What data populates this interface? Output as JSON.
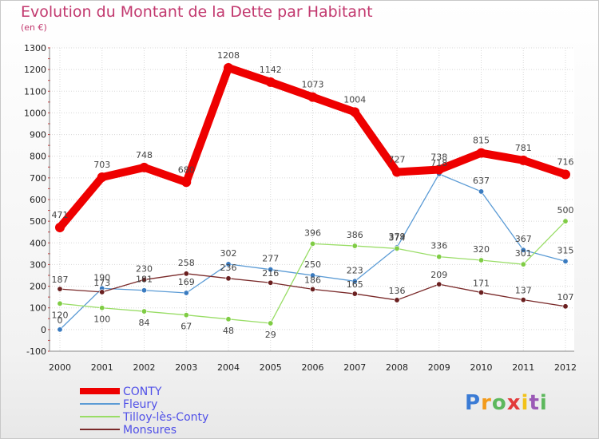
{
  "chart_data": {
    "type": "line",
    "title": "Evolution du Montant de la Dette par Habitant",
    "subtitle": "(en €)",
    "x": [
      "2000",
      "2001",
      "2002",
      "2003",
      "2004",
      "2005",
      "2006",
      "2007",
      "2008",
      "2009",
      "2010",
      "2011",
      "2012"
    ],
    "ylim": [
      -100,
      1300
    ],
    "yticks": [
      -100,
      0,
      100,
      200,
      300,
      400,
      500,
      600,
      700,
      800,
      900,
      1000,
      1100,
      1200,
      1300
    ],
    "grid": true,
    "legend_position": "bottom-left",
    "series": [
      {
        "name": "CONTY",
        "color": "#ee0000",
        "width": 10,
        "values": [
          471,
          703,
          748,
          680,
          1208,
          1142,
          1073,
          1004,
          727,
          738,
          815,
          781,
          716
        ]
      },
      {
        "name": "Fleury",
        "color": "#5b9bd5",
        "width": 1.3,
        "values": [
          0,
          190,
          181,
          169,
          302,
          277,
          250,
          223,
          379,
          718,
          637,
          367,
          315
        ]
      },
      {
        "name": "Tilloy-lès-Conty",
        "color": "#99dd66",
        "width": 1.3,
        "values": [
          120,
          100,
          84,
          67,
          48,
          29,
          396,
          386,
          374,
          336,
          320,
          301,
          500
        ]
      },
      {
        "name": "Monsures",
        "color": "#7a2a2a",
        "width": 1.3,
        "values": [
          187,
          173,
          230,
          258,
          236,
          216,
          186,
          165,
          136,
          209,
          171,
          137,
          107
        ]
      }
    ]
  },
  "logo": {
    "letters": [
      "P",
      "r",
      "o",
      "x",
      "i",
      "t",
      "i"
    ],
    "colors": [
      "#3a7bd5",
      "#f29a1a",
      "#5cb85c",
      "#e23b3b",
      "#f2c21a",
      "#9b59b6",
      "#5cb85c"
    ]
  }
}
